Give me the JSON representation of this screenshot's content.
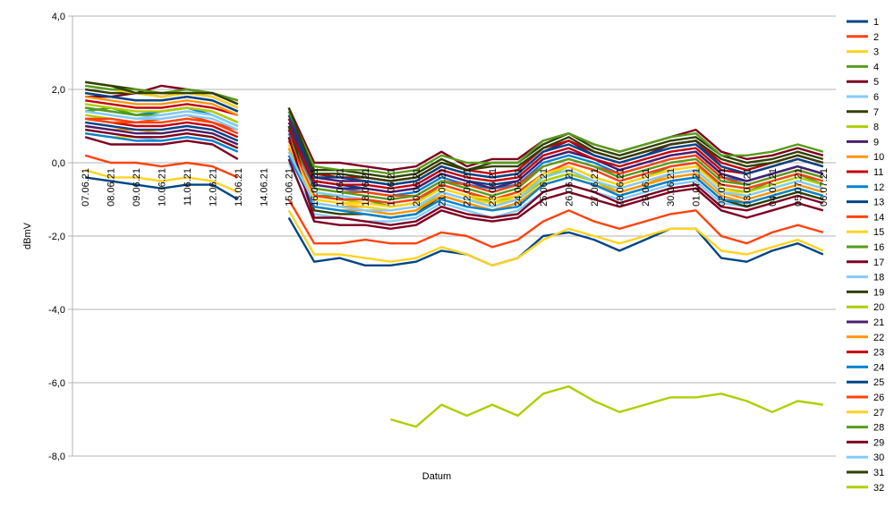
{
  "chart_data": {
    "type": "line",
    "title": "",
    "xlabel": "Datum",
    "ylabel": "dBmV",
    "ylim": [
      -8.0,
      4.0
    ],
    "y_ticks": [
      "4,0",
      "2,0",
      "0,0",
      "-2,0",
      "-4,0",
      "-6,0",
      "-8,0"
    ],
    "y_tick_values": [
      4,
      2,
      0,
      -2,
      -4,
      -6,
      -8
    ],
    "grid": true,
    "legend_position": "right",
    "categories": [
      "07.06.21",
      "08.06.21",
      "09.06.21",
      "10.06.21",
      "11.06.21",
      "12.06.21",
      "13.06.21",
      "14.06.21",
      "15.06.21",
      "16.06.21",
      "17.06.21",
      "18.06.21",
      "19.06.21",
      "20.06.21",
      "21.06.21",
      "22.06.21",
      "23.06.21",
      "24.06.21",
      "25.06.21",
      "26.06.21",
      "27.06.21",
      "28.06.21",
      "29.06.21",
      "30.06.21",
      "01.07.21",
      "02.07.21",
      "03.07.21",
      "04.07.21",
      "05.07.21",
      "06.07.21"
    ],
    "series": [
      {
        "name": "1",
        "color": "#004586",
        "values": [
          -0.4,
          -0.5,
          -0.6,
          -0.7,
          -0.6,
          -0.6,
          -1.0,
          null,
          -1.5,
          -2.7,
          -2.6,
          -2.8,
          -2.8,
          -2.7,
          -2.4,
          -2.5,
          -2.8,
          -2.6,
          -2.0,
          -1.9,
          -2.1,
          -2.4,
          -2.1,
          -1.8,
          -1.8,
          -2.6,
          -2.7,
          -2.4,
          -2.2,
          -2.5
        ]
      },
      {
        "name": "2",
        "color": "#ff420e",
        "values": [
          0.2,
          0.0,
          0.0,
          -0.1,
          0.0,
          -0.1,
          -0.4,
          null,
          -1.0,
          -2.2,
          -2.2,
          -2.1,
          -2.2,
          -2.2,
          -1.9,
          -2.0,
          -2.3,
          -2.1,
          -1.6,
          -1.3,
          -1.6,
          -1.8,
          -1.6,
          -1.4,
          -1.3,
          -2.0,
          -2.2,
          -1.9,
          -1.7,
          -1.9
        ]
      },
      {
        "name": "3",
        "color": "#ffd320",
        "values": [
          -0.2,
          -0.4,
          -0.4,
          -0.5,
          -0.4,
          -0.5,
          -0.8,
          null,
          -1.3,
          -2.5,
          -2.5,
          -2.6,
          -2.7,
          -2.6,
          -2.3,
          -2.5,
          -2.8,
          -2.6,
          -2.1,
          -1.8,
          -2.0,
          -2.2,
          -2.0,
          -1.8,
          -1.8,
          -2.4,
          -2.5,
          -2.3,
          -2.1,
          -2.4
        ]
      },
      {
        "name": "4",
        "color": "#579d1c",
        "values": [
          1.4,
          1.5,
          1.3,
          1.4,
          1.5,
          1.4,
          1.1,
          null,
          0.4,
          -0.9,
          -0.9,
          -1.0,
          -1.2,
          -1.1,
          -0.6,
          -0.8,
          -1.1,
          -0.9,
          -0.3,
          -0.1,
          -0.4,
          -0.6,
          -0.4,
          -0.1,
          0.0,
          -0.7,
          -0.8,
          -0.5,
          -0.3,
          -0.6
        ]
      },
      {
        "name": "5",
        "color": "#7e0021",
        "values": [
          1.8,
          1.8,
          1.9,
          2.1,
          2.0,
          1.9,
          1.7,
          null,
          1.5,
          0.0,
          0.0,
          -0.1,
          -0.2,
          -0.1,
          0.3,
          -0.1,
          0.1,
          0.1,
          0.6,
          0.8,
          0.5,
          0.3,
          0.5,
          0.7,
          0.9,
          0.3,
          0.1,
          0.2,
          0.4,
          0.2
        ]
      },
      {
        "name": "6",
        "color": "#83caff",
        "values": [
          0.9,
          0.8,
          0.7,
          0.6,
          0.7,
          0.6,
          0.3,
          null,
          0.0,
          -1.4,
          -1.5,
          -1.6,
          -1.6,
          -1.5,
          -1.1,
          -1.3,
          -1.5,
          -1.3,
          -0.8,
          -0.6,
          -0.8,
          -1.0,
          -0.8,
          -0.6,
          -0.5,
          -1.1,
          -1.2,
          -1.0,
          -0.8,
          -1.0
        ]
      },
      {
        "name": "7",
        "color": "#314004",
        "values": [
          2.2,
          2.1,
          2.0,
          1.9,
          1.9,
          1.9,
          1.6,
          null,
          1.4,
          -0.2,
          -0.2,
          -0.3,
          -0.4,
          -0.3,
          0.1,
          -0.2,
          0.0,
          0.0,
          0.5,
          0.8,
          0.4,
          0.2,
          0.4,
          0.6,
          0.7,
          0.2,
          0.0,
          0.1,
          0.3,
          0.1
        ]
      },
      {
        "name": "8",
        "color": "#aecf00",
        "values": [
          1.3,
          1.2,
          1.1,
          1.1,
          1.2,
          1.1,
          0.8,
          null,
          0.5,
          -0.9,
          -1.0,
          -1.1,
          -1.2,
          -1.1,
          -0.7,
          -0.9,
          -1.1,
          -0.9,
          -0.4,
          -0.1,
          -0.4,
          -0.6,
          -0.4,
          -0.2,
          -0.1,
          -0.7,
          -0.8,
          -0.6,
          -0.4,
          -0.6
        ]
      },
      {
        "name": "9",
        "color": "#4b1f6f",
        "values": [
          1.9,
          1.8,
          1.7,
          1.7,
          1.8,
          1.7,
          1.4,
          null,
          1.1,
          -0.4,
          -0.5,
          -0.5,
          -0.6,
          -0.5,
          -0.1,
          -0.3,
          -0.4,
          -0.3,
          0.3,
          0.6,
          0.2,
          0.0,
          0.2,
          0.5,
          0.6,
          -0.1,
          -0.3,
          -0.1,
          0.1,
          -0.1
        ]
      },
      {
        "name": "10",
        "color": "#ff950e",
        "values": [
          1.0,
          0.9,
          0.9,
          0.8,
          0.9,
          0.8,
          0.5,
          null,
          0.2,
          -1.1,
          -1.2,
          -1.2,
          -1.3,
          -1.2,
          -0.8,
          -1.0,
          -1.2,
          -1.0,
          -0.5,
          -0.3,
          -0.5,
          -0.8,
          -0.6,
          -0.3,
          -0.2,
          -0.8,
          -1.0,
          -0.8,
          -0.6,
          -0.8
        ]
      },
      {
        "name": "11",
        "color": "#c5000b",
        "values": [
          1.7,
          1.6,
          1.5,
          1.5,
          1.6,
          1.5,
          1.3,
          null,
          1.2,
          -0.3,
          -0.4,
          -0.4,
          -0.5,
          -0.4,
          0.0,
          -0.2,
          -0.3,
          -0.2,
          0.4,
          0.6,
          0.3,
          0.1,
          0.3,
          0.5,
          0.6,
          0.0,
          -0.2,
          0.0,
          0.2,
          0.0
        ]
      },
      {
        "name": "12",
        "color": "#0084d1",
        "values": [
          1.5,
          1.4,
          1.3,
          1.4,
          1.5,
          1.3,
          1.0,
          null,
          0.8,
          -0.6,
          -0.7,
          -0.8,
          -0.9,
          -0.8,
          -0.4,
          -0.6,
          -0.7,
          -0.6,
          0.0,
          0.2,
          0.0,
          -0.3,
          -0.1,
          0.1,
          0.2,
          -0.4,
          -0.5,
          -0.3,
          -0.1,
          -0.3
        ]
      },
      {
        "name": "13",
        "color": "#004586",
        "values": [
          1.1,
          1.0,
          0.9,
          0.9,
          1.0,
          0.9,
          0.6,
          null,
          1.0,
          -0.5,
          -0.6,
          -0.7,
          -0.8,
          -0.7,
          -0.3,
          -0.5,
          -0.6,
          -0.5,
          0.1,
          0.3,
          0.1,
          -0.2,
          0.0,
          0.2,
          0.3,
          -0.3,
          -0.5,
          -0.3,
          -0.1,
          -0.3
        ]
      },
      {
        "name": "14",
        "color": "#ff420e",
        "values": [
          1.2,
          1.2,
          1.1,
          1.2,
          1.3,
          1.1,
          0.9,
          null,
          0.7,
          -0.7,
          -0.8,
          -0.8,
          -0.9,
          -0.9,
          -0.5,
          -0.6,
          -0.8,
          -0.6,
          -0.1,
          0.1,
          -0.1,
          -0.3,
          -0.1,
          0.1,
          0.2,
          -0.4,
          -0.6,
          -0.4,
          -0.2,
          -0.4
        ]
      },
      {
        "name": "15",
        "color": "#ffd320",
        "values": [
          0.8,
          0.7,
          0.7,
          0.7,
          0.8,
          0.7,
          0.4,
          null,
          0.3,
          -1.0,
          -1.1,
          -1.2,
          -1.3,
          -1.2,
          -0.8,
          -1.0,
          -1.1,
          -1.0,
          -0.5,
          -0.3,
          -0.5,
          -0.7,
          -0.5,
          -0.3,
          -0.2,
          -0.8,
          -0.9,
          -0.7,
          -0.5,
          -0.7
        ]
      },
      {
        "name": "16",
        "color": "#579d1c",
        "values": [
          1.5,
          1.4,
          1.3,
          1.3,
          1.4,
          1.3,
          1.0,
          null,
          0.9,
          -0.7,
          -0.8,
          -0.9,
          -1.0,
          -0.9,
          -0.5,
          -0.7,
          -0.9,
          -0.7,
          -0.1,
          0.1,
          -0.1,
          -0.4,
          -0.2,
          0.0,
          0.1,
          -0.5,
          -0.6,
          -0.4,
          -0.2,
          -0.4
        ]
      },
      {
        "name": "17",
        "color": "#7e0021",
        "values": [
          0.7,
          0.5,
          0.5,
          0.5,
          0.6,
          0.5,
          0.1,
          null,
          0.1,
          -1.6,
          -1.7,
          -1.7,
          -1.8,
          -1.7,
          -1.3,
          -1.5,
          -1.6,
          -1.5,
          -1.0,
          -0.8,
          -1.0,
          -1.2,
          -1.0,
          -0.8,
          -0.7,
          -1.3,
          -1.5,
          -1.3,
          -1.1,
          -1.3
        ]
      },
      {
        "name": "18",
        "color": "#83caff",
        "values": [
          1.4,
          1.3,
          1.2,
          1.3,
          1.4,
          1.3,
          1.0,
          null,
          0.6,
          -0.8,
          -0.9,
          -1.0,
          -1.1,
          -1.0,
          -0.6,
          -0.8,
          -1.0,
          -0.8,
          -0.3,
          0.0,
          -0.2,
          -0.5,
          -0.3,
          -0.1,
          0.0,
          -0.6,
          -0.7,
          -0.5,
          -0.3,
          -0.5
        ]
      },
      {
        "name": "19",
        "color": "#314004",
        "values": [
          2.0,
          1.9,
          1.9,
          1.8,
          1.9,
          1.8,
          1.5,
          null,
          1.0,
          -1.3,
          -1.4,
          -1.4,
          -1.5,
          -1.4,
          -0.9,
          -1.1,
          -1.3,
          -1.1,
          -0.6,
          -0.4,
          -0.6,
          -0.9,
          -0.7,
          -0.5,
          -0.4,
          -1.0,
          -1.2,
          -1.0,
          -0.8,
          -1.0
        ]
      },
      {
        "name": "20",
        "color": "#aecf00",
        "values": [
          1.6,
          1.5,
          1.4,
          1.4,
          1.5,
          1.4,
          1.1,
          null,
          0.7,
          -1.1,
          -1.2,
          -1.3,
          -1.4,
          -1.3,
          -0.8,
          -1.0,
          -1.2,
          -1.0,
          -0.5,
          -0.3,
          -0.5,
          -0.8,
          -0.6,
          -0.4,
          -0.3,
          -0.9,
          -1.1,
          -0.9,
          -0.7,
          -0.9
        ]
      },
      {
        "name": "21",
        "color": "#4b1f6f",
        "values": [
          1.0,
          0.9,
          0.8,
          0.8,
          0.9,
          0.8,
          0.5,
          null,
          0.9,
          -0.6,
          -0.7,
          -0.7,
          -0.8,
          -0.7,
          -0.3,
          -0.5,
          -0.7,
          -0.5,
          0.1,
          0.3,
          0.1,
          -0.2,
          0.0,
          0.2,
          0.3,
          -0.3,
          -0.5,
          -0.3,
          -0.1,
          -0.3
        ]
      },
      {
        "name": "22",
        "color": "#ff950e",
        "values": [
          1.8,
          1.7,
          1.6,
          1.6,
          1.7,
          1.6,
          1.3,
          null,
          0.4,
          -1.2,
          -1.3,
          -1.3,
          -1.4,
          -1.3,
          -0.9,
          -1.1,
          -1.3,
          -1.1,
          -0.6,
          -0.4,
          -0.6,
          -0.8,
          -0.6,
          -0.4,
          -0.3,
          -0.9,
          -1.1,
          -0.9,
          -0.7,
          -0.9
        ]
      },
      {
        "name": "23",
        "color": "#c5000b",
        "values": [
          1.2,
          1.1,
          1.0,
          1.0,
          1.1,
          1.0,
          0.7,
          null,
          0.9,
          -0.5,
          -0.6,
          -0.6,
          -0.7,
          -0.6,
          -0.2,
          -0.4,
          -0.5,
          -0.4,
          0.2,
          0.4,
          0.1,
          -0.1,
          0.1,
          0.3,
          0.4,
          -0.2,
          -0.3,
          -0.1,
          0.1,
          -0.1
        ]
      },
      {
        "name": "24",
        "color": "#0084d1",
        "values": [
          0.8,
          0.7,
          0.6,
          0.6,
          0.7,
          0.6,
          0.3,
          null,
          0.2,
          -1.2,
          -1.3,
          -1.4,
          -1.5,
          -1.4,
          -1.0,
          -1.2,
          -1.3,
          -1.2,
          -0.6,
          -0.4,
          -0.6,
          -0.9,
          -0.7,
          -0.5,
          -0.4,
          -1.0,
          -1.1,
          -0.9,
          -0.7,
          -0.9
        ]
      },
      {
        "name": "25",
        "color": "#004586",
        "values": [
          1.9,
          1.8,
          1.7,
          1.7,
          1.8,
          1.7,
          1.4,
          null,
          1.3,
          -0.4,
          -0.4,
          -0.5,
          -0.6,
          -0.5,
          -0.1,
          -0.3,
          -0.4,
          -0.3,
          0.3,
          0.5,
          0.2,
          0.0,
          0.2,
          0.4,
          0.5,
          -0.1,
          -0.3,
          -0.1,
          0.1,
          -0.1
        ]
      },
      {
        "name": "26",
        "color": "#ff420e",
        "values": [
          1.2,
          1.1,
          1.1,
          1.1,
          1.2,
          1.1,
          0.8,
          null,
          0.6,
          -0.9,
          -1.0,
          -1.0,
          -1.1,
          -1.0,
          -0.6,
          -0.8,
          -1.0,
          -0.8,
          -0.3,
          0.0,
          -0.2,
          -0.5,
          -0.3,
          -0.1,
          0.0,
          -0.6,
          -0.7,
          -0.5,
          -0.3,
          -0.5
        ]
      },
      {
        "name": "27",
        "color": "#ffd320",
        "values": [
          2.1,
          2.0,
          1.9,
          1.8,
          1.9,
          1.8,
          1.5,
          null,
          0.5,
          -1.0,
          -1.1,
          -1.1,
          -1.2,
          -1.1,
          -0.7,
          -0.9,
          -1.0,
          -0.9,
          -0.3,
          -0.1,
          -0.4,
          -0.6,
          -0.4,
          -0.2,
          -0.1,
          -0.7,
          -0.9,
          -0.7,
          -0.5,
          -0.7
        ]
      },
      {
        "name": "28",
        "color": "#579d1c",
        "values": [
          2.1,
          2.0,
          2.0,
          1.9,
          2.0,
          1.9,
          1.7,
          null,
          1.4,
          -0.1,
          -0.2,
          -0.2,
          -0.3,
          -0.2,
          0.2,
          0.0,
          0.0,
          0.0,
          0.6,
          0.8,
          0.5,
          0.3,
          0.5,
          0.7,
          0.8,
          0.2,
          0.2,
          0.3,
          0.5,
          0.3
        ]
      },
      {
        "name": "29",
        "color": "#7e0021",
        "values": [
          0.9,
          0.8,
          0.7,
          0.7,
          0.8,
          0.7,
          0.4,
          null,
          0.7,
          -1.5,
          -1.5,
          -1.6,
          -1.7,
          -1.6,
          -1.2,
          -1.4,
          -1.5,
          -1.4,
          -0.8,
          -0.6,
          -0.8,
          -1.1,
          -0.9,
          -0.7,
          -0.6,
          -1.2,
          -1.3,
          -1.1,
          -0.9,
          -1.1
        ]
      },
      {
        "name": "30",
        "color": "#83caff",
        "values": [
          1.4,
          1.3,
          1.2,
          1.2,
          1.3,
          1.2,
          0.9,
          null,
          0.3,
          -1.1,
          -1.2,
          -1.3,
          -1.3,
          -1.2,
          -0.8,
          -1.0,
          -1.2,
          -1.0,
          -0.4,
          -0.2,
          -0.5,
          -0.7,
          -0.5,
          -0.3,
          -0.2,
          -0.8,
          -0.9,
          -0.7,
          -0.5,
          -0.7
        ]
      },
      {
        "name": "31",
        "color": "#314004",
        "values": [
          2.2,
          2.1,
          1.9,
          1.9,
          1.9,
          1.9,
          1.6,
          null,
          1.5,
          -0.3,
          -0.3,
          -0.4,
          -0.5,
          -0.4,
          0.0,
          -0.2,
          -0.1,
          -0.1,
          0.4,
          0.7,
          0.3,
          0.1,
          0.3,
          0.5,
          0.6,
          0.1,
          -0.1,
          0.0,
          0.2,
          0.0
        ]
      },
      {
        "name": "32",
        "color": "#aecf00",
        "values": [
          null,
          null,
          null,
          null,
          null,
          null,
          null,
          null,
          null,
          null,
          null,
          null,
          -7.0,
          -7.2,
          -6.6,
          -6.9,
          -6.6,
          -6.9,
          -6.3,
          -6.1,
          -6.5,
          -6.8,
          -6.6,
          -6.4,
          -6.4,
          -6.3,
          -6.5,
          -6.8,
          -6.5,
          -6.6
        ]
      }
    ]
  }
}
